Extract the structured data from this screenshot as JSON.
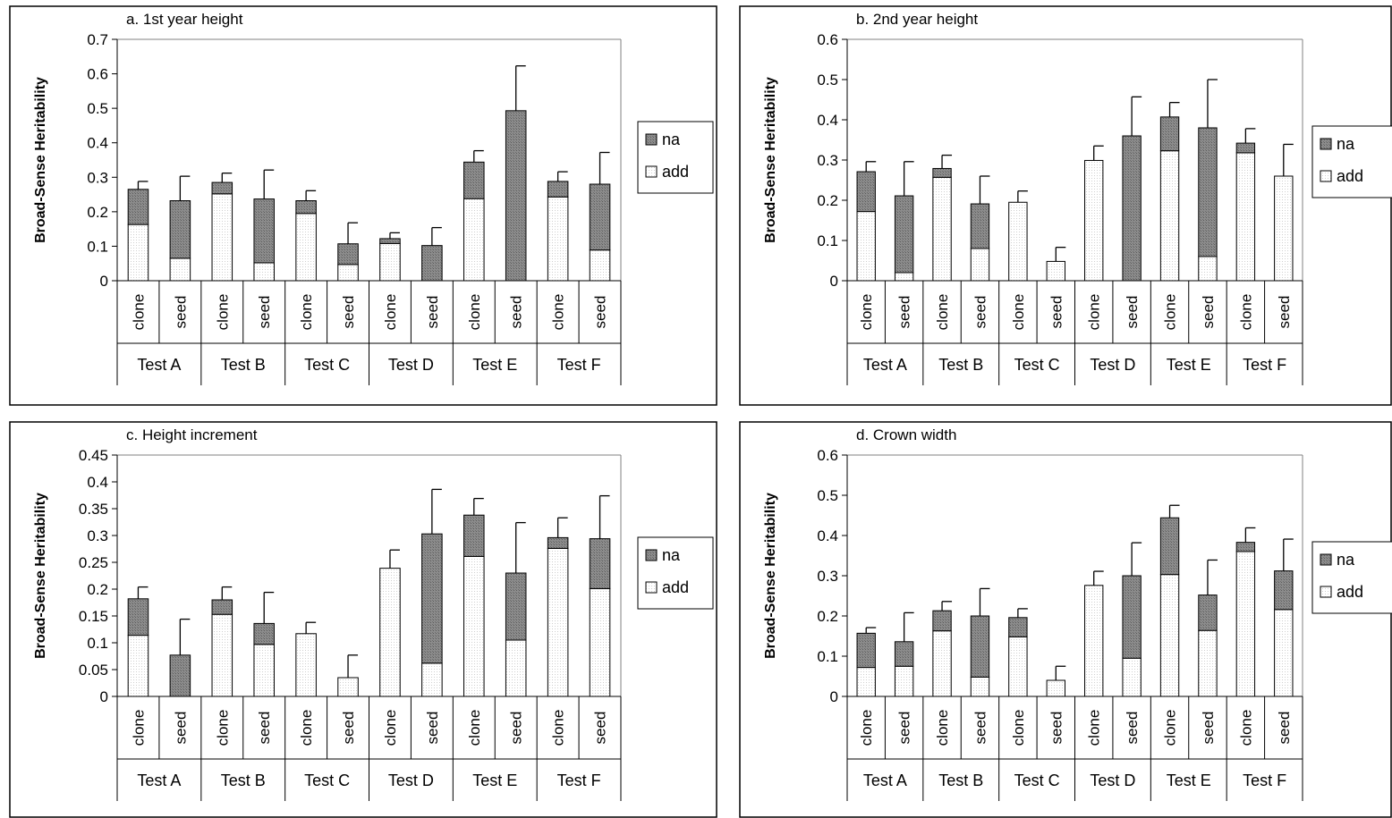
{
  "chart_data": [
    {
      "type": "bar",
      "title": "a. 1st year height",
      "ylabel": "Broad-Sense Heritability",
      "ylim": [
        0,
        0.7
      ],
      "yticks": [
        "0",
        "0.1",
        "0.2",
        "0.3",
        "0.4",
        "0.5",
        "0.6",
        "0.7"
      ],
      "categories": [
        "clone",
        "seed",
        "clone",
        "seed",
        "clone",
        "seed",
        "clone",
        "seed",
        "clone",
        "seed",
        "clone",
        "seed"
      ],
      "groups": [
        "Test A",
        "Test B",
        "Test C",
        "Test D",
        "Test E",
        "Test F"
      ],
      "stacked": true,
      "series": [
        {
          "name": "add",
          "values": [
            0.163,
            0.065,
            0.252,
            0.052,
            0.195,
            0.047,
            0.108,
            0.0,
            0.238,
            0.0,
            0.243,
            0.089
          ]
        },
        {
          "name": "na",
          "values": [
            0.102,
            0.167,
            0.033,
            0.185,
            0.037,
            0.06,
            0.014,
            0.102,
            0.106,
            0.493,
            0.045,
            0.191
          ]
        }
      ],
      "error_bar_tops": [
        0.288,
        0.303,
        0.312,
        0.321,
        0.261,
        0.168,
        0.139,
        0.154,
        0.377,
        0.623,
        0.316,
        0.372
      ],
      "legend": [
        "na",
        "add"
      ],
      "legend_position": "right"
    },
    {
      "type": "bar",
      "title": "b. 2nd year height",
      "ylabel": "Broad-Sense Heritability",
      "ylim": [
        0,
        0.6
      ],
      "yticks": [
        "0",
        "0.1",
        "0.2",
        "0.3",
        "0.4",
        "0.5",
        "0.6"
      ],
      "categories": [
        "clone",
        "seed",
        "clone",
        "seed",
        "clone",
        "seed",
        "clone",
        "seed",
        "clone",
        "seed",
        "clone",
        "seed"
      ],
      "groups": [
        "Test A",
        "Test B",
        "Test C",
        "Test D",
        "Test E",
        "Test F"
      ],
      "stacked": true,
      "series": [
        {
          "name": "add",
          "values": [
            0.172,
            0.02,
            0.257,
            0.08,
            0.195,
            0.048,
            0.299,
            0.0,
            0.323,
            0.06,
            0.318,
            0.26
          ]
        },
        {
          "name": "na",
          "values": [
            0.099,
            0.191,
            0.022,
            0.111,
            0.0,
            0.0,
            0.0,
            0.36,
            0.084,
            0.32,
            0.024,
            0.0
          ]
        }
      ],
      "error_bar_tops": [
        0.296,
        0.296,
        0.312,
        0.26,
        0.223,
        0.083,
        0.335,
        0.457,
        0.443,
        0.5,
        0.378,
        0.339
      ],
      "legend": [
        "na",
        "add"
      ],
      "legend_position": "right"
    },
    {
      "type": "bar",
      "title": "c. Height increment",
      "ylabel": "Broad-Sense Heritability",
      "ylim": [
        0,
        0.45
      ],
      "yticks": [
        "0",
        "0.05",
        "0.1",
        "0.15",
        "0.2",
        "0.25",
        "0.3",
        "0.35",
        "0.4",
        "0.45"
      ],
      "categories": [
        "clone",
        "seed",
        "clone",
        "seed",
        "clone",
        "seed",
        "clone",
        "seed",
        "clone",
        "seed",
        "clone",
        "seed"
      ],
      "groups": [
        "Test A",
        "Test B",
        "Test C",
        "Test D",
        "Test E",
        "Test F"
      ],
      "stacked": true,
      "series": [
        {
          "name": "add",
          "values": [
            0.114,
            0.0,
            0.153,
            0.097,
            0.117,
            0.035,
            0.239,
            0.062,
            0.261,
            0.105,
            0.276,
            0.201
          ]
        },
        {
          "name": "na",
          "values": [
            0.068,
            0.077,
            0.027,
            0.039,
            0.0,
            0.0,
            0.0,
            0.241,
            0.077,
            0.125,
            0.02,
            0.093
          ]
        }
      ],
      "error_bar_tops": [
        0.204,
        0.144,
        0.204,
        0.194,
        0.138,
        0.077,
        0.273,
        0.386,
        0.369,
        0.324,
        0.333,
        0.374
      ],
      "legend": [
        "na",
        "add"
      ],
      "legend_position": "right"
    },
    {
      "type": "bar",
      "title": "d. Crown width",
      "ylabel": "Broad-Sense Heritability",
      "ylim": [
        0,
        0.6
      ],
      "yticks": [
        "0",
        "0.1",
        "0.2",
        "0.3",
        "0.4",
        "0.5",
        "0.6"
      ],
      "categories": [
        "clone",
        "seed",
        "clone",
        "seed",
        "clone",
        "seed",
        "clone",
        "seed",
        "clone",
        "seed",
        "clone",
        "seed"
      ],
      "groups": [
        "Test A",
        "Test B",
        "Test C",
        "Test D",
        "Test E",
        "Test F"
      ],
      "stacked": true,
      "series": [
        {
          "name": "add",
          "values": [
            0.072,
            0.075,
            0.163,
            0.048,
            0.148,
            0.04,
            0.276,
            0.095,
            0.303,
            0.164,
            0.36,
            0.216
          ]
        },
        {
          "name": "na",
          "values": [
            0.085,
            0.061,
            0.05,
            0.152,
            0.048,
            0.0,
            0.0,
            0.205,
            0.141,
            0.088,
            0.023,
            0.096
          ]
        }
      ],
      "error_bar_tops": [
        0.171,
        0.208,
        0.236,
        0.268,
        0.218,
        0.075,
        0.311,
        0.382,
        0.475,
        0.339,
        0.419,
        0.391
      ],
      "legend": [
        "na",
        "add"
      ],
      "legend_position": "right"
    }
  ]
}
